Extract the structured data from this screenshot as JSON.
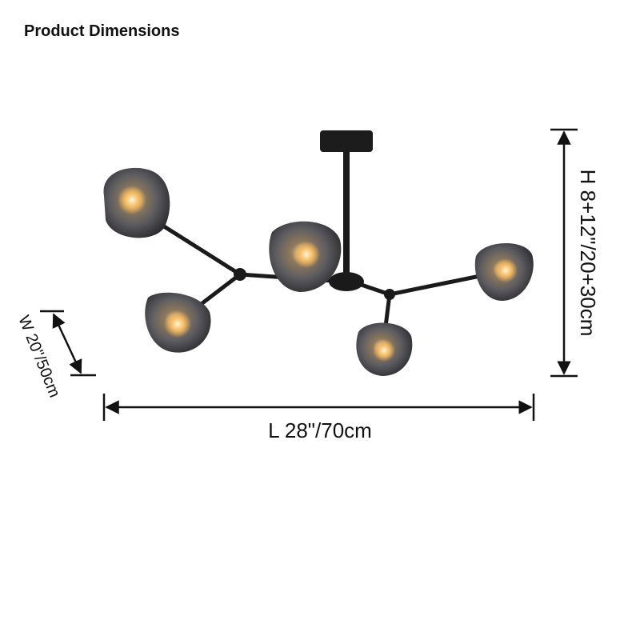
{
  "title": "Product Dimensions",
  "dimensions": {
    "height": "H 8+12\"/20+30cm",
    "width": "W 20\"/50cm",
    "length": "L 28\"/70cm"
  }
}
